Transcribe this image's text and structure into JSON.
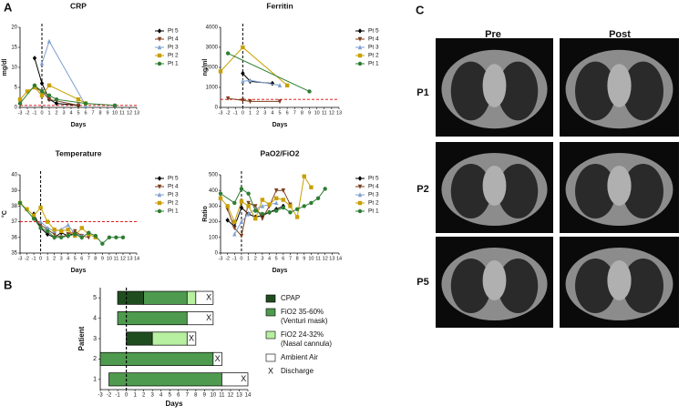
{
  "panels": [
    "A",
    "B"
  ],
  "ct": {
    "title": "C",
    "columns": [
      "Pre",
      "Post"
    ],
    "rows": [
      "P1",
      "P2",
      "P5"
    ]
  },
  "chart_data": [
    {
      "type": "line",
      "title": "CRP",
      "xlabel": "Days",
      "ylabel": "mg/dl",
      "xlim": [
        -3,
        13
      ],
      "xticks": [
        -3,
        -2,
        -1,
        0,
        1,
        2,
        3,
        4,
        5,
        6,
        7,
        8,
        9,
        10,
        11,
        12,
        13
      ],
      "ylim": [
        0,
        20
      ],
      "yticks": [
        0,
        5,
        10,
        15,
        20
      ],
      "vline": 0,
      "hline": 0.5,
      "series": [
        {
          "name": "Pt 5",
          "color": "#000000",
          "marker": "diamond",
          "x": [
            -1,
            0,
            1,
            2,
            5
          ],
          "values": [
            12.3,
            6,
            2,
            1,
            0.5
          ]
        },
        {
          "name": "Pt 4",
          "color": "#7b3f1e",
          "marker": "triangle-down",
          "x": [
            -1,
            0,
            1,
            5
          ],
          "values": [
            5,
            4,
            2,
            0.5
          ]
        },
        {
          "name": "Pt 3",
          "color": "#7fa0d0",
          "marker": "triangle",
          "x": [
            0,
            1,
            6
          ],
          "values": [
            11,
            16.5,
            0.5
          ]
        },
        {
          "name": "Pt 2",
          "color": "#c8a000",
          "marker": "square",
          "x": [
            -3,
            -2,
            -1,
            0,
            1,
            5,
            6
          ],
          "values": [
            2,
            4,
            5,
            3,
            5.5,
            2,
            1
          ]
        },
        {
          "name": "Pt 1",
          "color": "#2e7d32",
          "marker": "circle",
          "x": [
            -3,
            -1,
            0,
            1,
            2,
            6,
            10
          ],
          "values": [
            1,
            5.5,
            4,
            3,
            2,
            1,
            0.5
          ]
        }
      ]
    },
    {
      "type": "line",
      "title": "Ferritin",
      "xlabel": "Days",
      "ylabel": "ng/ml",
      "xlim": [
        -3,
        13
      ],
      "xticks": [
        -3,
        -2,
        -1,
        0,
        1,
        2,
        3,
        4,
        5,
        6,
        7,
        8,
        9,
        10,
        11,
        12,
        13
      ],
      "ylim": [
        0,
        4000
      ],
      "yticks": [
        0,
        1000,
        2000,
        3000,
        4000
      ],
      "vline": 0,
      "hline": 400,
      "series": [
        {
          "name": "Pt 5",
          "color": "#000000",
          "marker": "diamond",
          "x": [
            0,
            1,
            4
          ],
          "values": [
            1700,
            1300,
            1200
          ]
        },
        {
          "name": "Pt 4",
          "color": "#7b3f1e",
          "marker": "triangle-down",
          "x": [
            -2,
            0,
            1,
            5
          ],
          "values": [
            450,
            350,
            300,
            300
          ]
        },
        {
          "name": "Pt 3",
          "color": "#7fa0d0",
          "marker": "triangle",
          "x": [
            0,
            1,
            5
          ],
          "values": [
            1300,
            1350,
            1100
          ]
        },
        {
          "name": "Pt 2",
          "color": "#c8a000",
          "marker": "square",
          "x": [
            -3,
            0,
            6
          ],
          "values": [
            1800,
            3000,
            1100
          ]
        },
        {
          "name": "Pt 1",
          "color": "#2e7d32",
          "marker": "circle",
          "x": [
            -2,
            9
          ],
          "values": [
            2700,
            800
          ]
        }
      ]
    },
    {
      "type": "line",
      "title": "Temperature",
      "xlabel": "Days",
      "ylabel": "°C",
      "xlim": [
        -3,
        14
      ],
      "xticks": [
        -3,
        -2,
        -1,
        0,
        1,
        2,
        3,
        4,
        5,
        6,
        7,
        8,
        9,
        10,
        11,
        12,
        13,
        14
      ],
      "ylim": [
        35,
        40
      ],
      "yticks": [
        35,
        36,
        37,
        38,
        39,
        40
      ],
      "vline": 0,
      "hline": 37,
      "series": [
        {
          "name": "Pt 5",
          "color": "#000000",
          "marker": "diamond",
          "x": [
            -1,
            0,
            1,
            2,
            3,
            4,
            5,
            6
          ],
          "values": [
            37.5,
            36.6,
            36.2,
            36,
            36.3,
            36.1,
            36.3,
            36
          ]
        },
        {
          "name": "Pt 4",
          "color": "#7b3f1e",
          "marker": "triangle-down",
          "x": [
            -1,
            0,
            1,
            2,
            3,
            4,
            5,
            6,
            7
          ],
          "values": [
            37.2,
            36.8,
            36.5,
            36.2,
            36,
            36.2,
            36.4,
            36.1,
            36
          ]
        },
        {
          "name": "Pt 3",
          "color": "#7fa0d0",
          "marker": "triangle",
          "x": [
            0,
            1,
            2,
            3,
            4,
            5,
            6
          ],
          "values": [
            37,
            36.6,
            36.4,
            36.5,
            36.8,
            36.2,
            36.1
          ]
        },
        {
          "name": "Pt 2",
          "color": "#c8a000",
          "marker": "square",
          "x": [
            -3,
            -2,
            -1,
            0,
            1,
            2,
            3,
            4,
            5,
            6,
            7,
            8
          ],
          "values": [
            38.2,
            37.8,
            37.4,
            37.9,
            37,
            36.5,
            36.4,
            36.5,
            36.1,
            36.6,
            36.2,
            36
          ]
        },
        {
          "name": "Pt 1",
          "color": "#2e7d32",
          "marker": "circle",
          "x": [
            -3,
            -1,
            0,
            1,
            2,
            3,
            4,
            5,
            6,
            7,
            8,
            9,
            10,
            11,
            12
          ],
          "values": [
            38.2,
            37.2,
            36.6,
            36.4,
            36,
            36,
            36.1,
            36.2,
            36,
            36.3,
            36.1,
            35.6,
            36,
            36,
            36
          ]
        }
      ]
    },
    {
      "type": "line",
      "title": "PaO2/FiO2",
      "xlabel": "Days",
      "ylabel": "Ratio",
      "xlim": [
        -3,
        14
      ],
      "xticks": [
        -3,
        -2,
        -1,
        0,
        1,
        2,
        3,
        4,
        5,
        6,
        7,
        8,
        9,
        10,
        11,
        12,
        13,
        14
      ],
      "ylim": [
        0,
        500
      ],
      "yticks": [
        0,
        100,
        200,
        300,
        400,
        500
      ],
      "vline": 0,
      "series": [
        {
          "name": "Pt 5",
          "color": "#000000",
          "marker": "diamond",
          "x": [
            -2,
            -1,
            0,
            1,
            2,
            3,
            4,
            5,
            6
          ],
          "values": [
            210,
            170,
            290,
            250,
            230,
            240,
            260,
            280,
            300
          ]
        },
        {
          "name": "Pt 4",
          "color": "#7b3f1e",
          "marker": "triangle-down",
          "x": [
            -2,
            -1,
            0,
            1,
            2,
            3,
            4,
            5,
            6,
            7
          ],
          "values": [
            280,
            160,
            110,
            320,
            300,
            220,
            300,
            400,
            400,
            310
          ]
        },
        {
          "name": "Pt 3",
          "color": "#7fa0d0",
          "marker": "triangle",
          "x": [
            -1,
            0,
            1,
            2,
            3,
            4,
            5
          ],
          "values": [
            120,
            200,
            250,
            280,
            300,
            310,
            320
          ]
        },
        {
          "name": "Pt 2",
          "color": "#c8a000",
          "marker": "square",
          "x": [
            -3,
            -2,
            -1,
            0,
            1,
            2,
            3,
            4,
            5,
            6,
            7,
            8,
            9,
            10
          ],
          "values": [
            350,
            300,
            200,
            330,
            300,
            220,
            340,
            310,
            350,
            340,
            300,
            230,
            490,
            420
          ]
        },
        {
          "name": "Pt 1",
          "color": "#2e7d32",
          "marker": "circle",
          "x": [
            -3,
            -1,
            0,
            1,
            2,
            3,
            4,
            5,
            6,
            7,
            8,
            9,
            10,
            11,
            12
          ],
          "values": [
            380,
            320,
            410,
            380,
            270,
            250,
            260,
            270,
            290,
            260,
            280,
            300,
            320,
            350,
            410
          ]
        }
      ]
    },
    {
      "type": "timeline",
      "xlabel": "Days",
      "ylabel": "Patient",
      "xlim": [
        -3,
        14
      ],
      "xticks": [
        -3,
        -2,
        -1,
        0,
        1,
        2,
        3,
        4,
        5,
        6,
        7,
        8,
        9,
        10,
        11,
        12,
        13,
        14
      ],
      "categories": [
        "1",
        "2",
        "3",
        "4",
        "5"
      ],
      "vline": 0,
      "start": [
        -2,
        -3,
        0,
        -1,
        -1
      ],
      "series": [
        {
          "name": "CPAP",
          "color": "#1f4d1f",
          "values": [
            null,
            null,
            3,
            null,
            3
          ]
        },
        {
          "name": "FiO2 35-60%",
          "note": "(Venturi  mask)",
          "color": "#4e9a4e",
          "values": [
            13,
            13,
            null,
            8,
            5
          ]
        },
        {
          "name": "FiO2 24-32%",
          "note": "(Nasal cannula)",
          "color": "#b6f0a0",
          "values": [
            null,
            null,
            4,
            null,
            1
          ]
        },
        {
          "name": "Ambient Air",
          "color": "#ffffff",
          "values": [
            3,
            1,
            1,
            3,
            2
          ]
        }
      ],
      "discharge_marker": "X",
      "discharge_name": "Discharge",
      "discharge": [
        13.5,
        10.5,
        7.5,
        9.5,
        9.5
      ]
    }
  ]
}
